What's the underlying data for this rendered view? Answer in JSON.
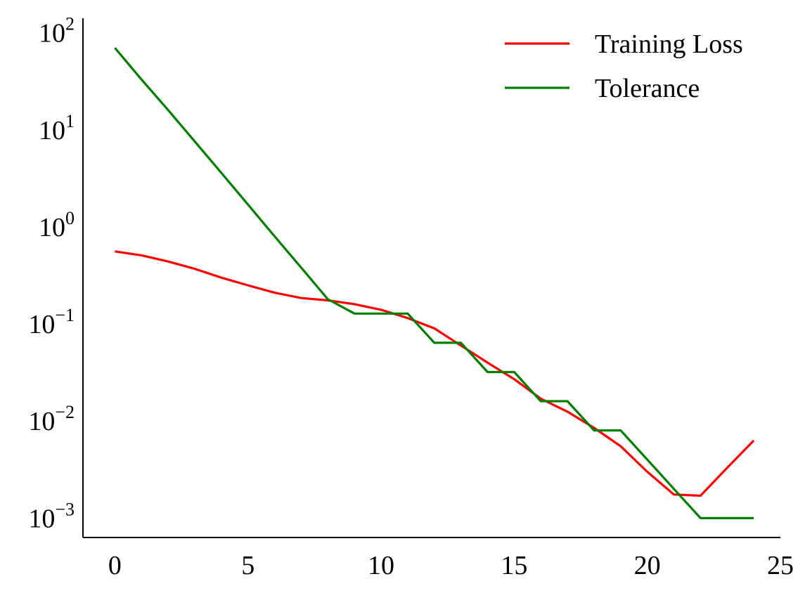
{
  "chart_data": {
    "type": "line",
    "title": "",
    "xlabel": "",
    "ylabel": "",
    "yscale": "log",
    "grid": false,
    "legend_position": "top-right",
    "xlim": [
      -1.2,
      25
    ],
    "ylim_exp": [
      -3.2,
      2.15
    ],
    "x_ticks": [
      {
        "value": 0,
        "label": "0"
      },
      {
        "value": 5,
        "label": "5"
      },
      {
        "value": 10,
        "label": "10"
      },
      {
        "value": 15,
        "label": "15"
      },
      {
        "value": 20,
        "label": "20"
      },
      {
        "value": 25,
        "label": "25"
      }
    ],
    "y_ticks": [
      {
        "exp": 2,
        "base": "10",
        "sup": "2"
      },
      {
        "exp": 1,
        "base": "10",
        "sup": "1"
      },
      {
        "exp": 0,
        "base": "10",
        "sup": "0"
      },
      {
        "exp": -1,
        "base": "10",
        "sup": "−1"
      },
      {
        "exp": -2,
        "base": "10",
        "sup": "−2"
      },
      {
        "exp": -3,
        "base": "10",
        "sup": "−3"
      }
    ],
    "x": [
      0,
      1,
      2,
      3,
      4,
      5,
      6,
      7,
      8,
      9,
      10,
      11,
      12,
      13,
      14,
      15,
      16,
      17,
      18,
      19,
      20,
      21,
      22,
      23,
      24
    ],
    "series": [
      {
        "name": "Training Loss",
        "color": "#ff0000",
        "step": false,
        "values": [
          0.56,
          0.51,
          0.44,
          0.37,
          0.3,
          0.25,
          0.21,
          0.185,
          0.175,
          0.16,
          0.14,
          0.115,
          0.09,
          0.06,
          0.04,
          0.027,
          0.017,
          0.0125,
          0.0085,
          0.0055,
          0.003,
          0.00175,
          0.0017,
          0.0033,
          0.0063
        ]
      },
      {
        "name": "Tolerance",
        "color": "#008000",
        "step": true,
        "values": [
          70,
          33,
          16,
          7.6,
          3.6,
          1.7,
          0.8,
          0.38,
          0.18,
          0.128,
          0.128,
          0.128,
          0.064,
          0.064,
          0.032,
          0.032,
          0.016,
          0.016,
          0.008,
          0.008,
          0.004,
          0.002,
          0.001,
          0.001,
          0.001
        ]
      }
    ]
  }
}
